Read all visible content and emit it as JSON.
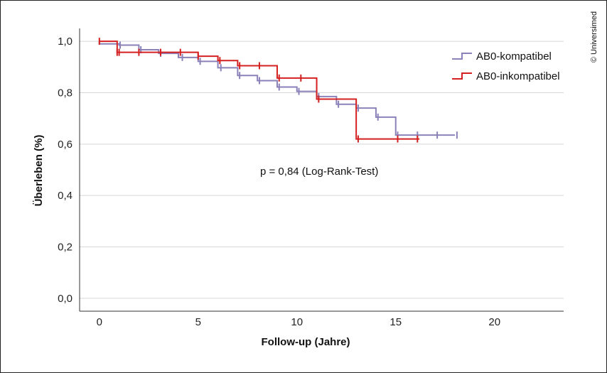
{
  "copyright": "© Universimed",
  "chart_data": {
    "type": "line",
    "subtype": "kaplan-meier",
    "xlabel": "Follow-up (Jahre)",
    "ylabel": "Überleben (%)",
    "xlim": [
      -1,
      23.5
    ],
    "ylim": [
      -0.05,
      1.05
    ],
    "x_ticks": [
      0,
      5,
      10,
      15,
      20
    ],
    "x_tick_labels": [
      "0",
      "5",
      "10",
      "15",
      "20"
    ],
    "y_ticks": [
      0.0,
      0.2,
      0.4,
      0.6,
      0.8,
      1.0
    ],
    "y_tick_labels": [
      "0,0",
      "0,2",
      "0,4",
      "0,6",
      "0,8",
      "1,0"
    ],
    "grid": "horizontal",
    "legend_position": "top-right",
    "annotation": "p = 0,84 (Log-Rank-Test)",
    "series": [
      {
        "name": "AB0-kompatibel",
        "color": "#8a82b8",
        "steps": [
          [
            0,
            1.0
          ],
          [
            0,
            0.99
          ],
          [
            1,
            0.985
          ],
          [
            2,
            0.967
          ],
          [
            3,
            0.953
          ],
          [
            4,
            0.937
          ],
          [
            5,
            0.922
          ],
          [
            6,
            0.897
          ],
          [
            7,
            0.867
          ],
          [
            8,
            0.847
          ],
          [
            9,
            0.822
          ],
          [
            10,
            0.805
          ],
          [
            11,
            0.785
          ],
          [
            12,
            0.755
          ],
          [
            13,
            0.74
          ],
          [
            14,
            0.705
          ],
          [
            15,
            0.635
          ],
          [
            18,
            0.635
          ]
        ],
        "censored": [
          1.05,
          2.1,
          3.1,
          4.2,
          5.1,
          6.15,
          7.1,
          8.1,
          9.1,
          10.1,
          11.1,
          12.1,
          13.1,
          14.1,
          15.1,
          16.1,
          17.1,
          18.1
        ]
      },
      {
        "name": "AB0-inkompatibel",
        "color": "#d42020",
        "steps": [
          [
            0,
            1.0
          ],
          [
            0.9,
            0.957
          ],
          [
            5,
            0.957
          ],
          [
            5,
            0.942
          ],
          [
            6,
            0.925
          ],
          [
            7,
            0.905
          ],
          [
            9,
            0.857
          ],
          [
            11,
            0.775
          ],
          [
            13,
            0.62
          ],
          [
            16.2,
            0.62
          ]
        ],
        "censored": [
          0,
          0.9,
          1.0,
          2.0,
          3.1,
          4.1,
          5.0,
          6.1,
          7.1,
          8.1,
          9.1,
          10.2,
          11.1,
          13.1,
          15.1,
          16.1
        ]
      }
    ]
  }
}
